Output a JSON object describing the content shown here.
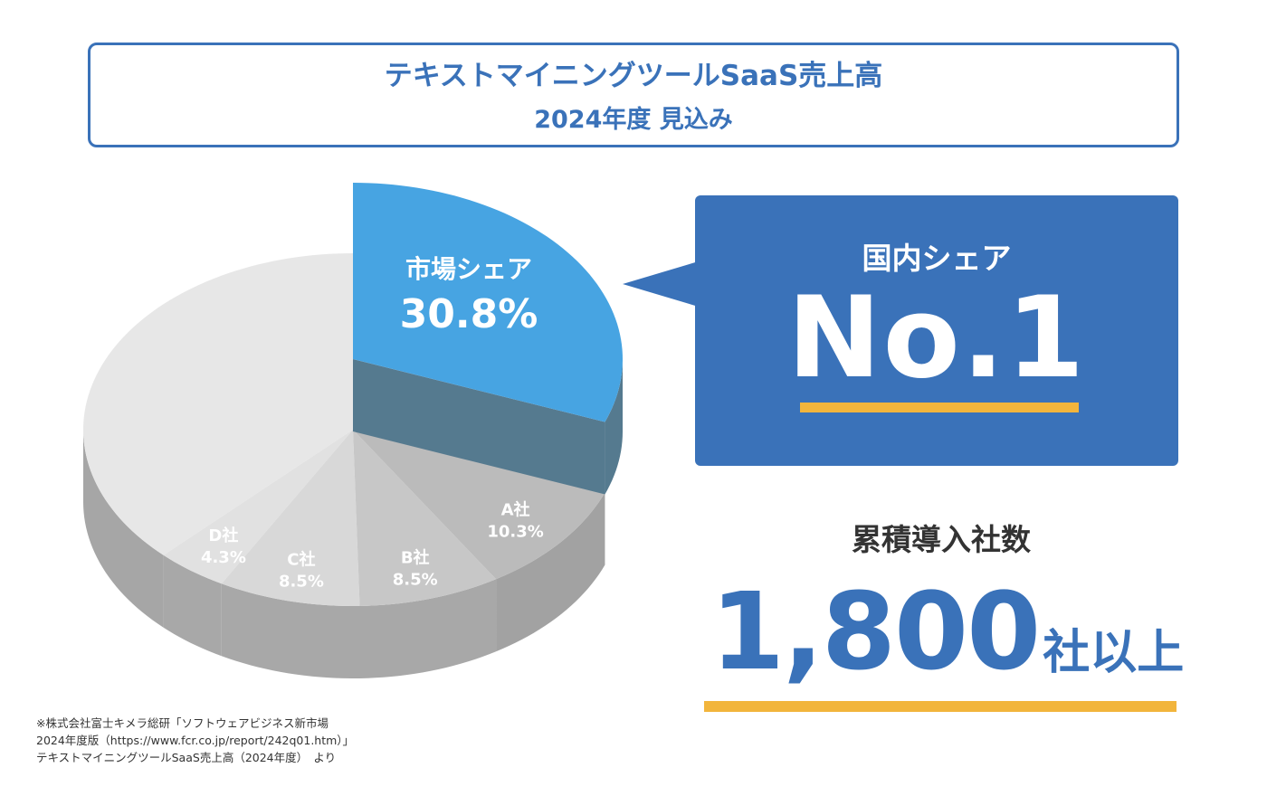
{
  "title": {
    "line1": "テキストマイニングツールSaaS売上高",
    "line2": "2024年度 見込み"
  },
  "colors": {
    "brand_blue": "#3a72b9",
    "highlight_top": "#47a4e2",
    "highlight_side": "#557a8f",
    "accent_underline": "#f2b53c",
    "others_top": "#e7e7e7",
    "others_side": "#a6a6a6"
  },
  "chart_data": {
    "type": "pie",
    "style": "3d-exploded",
    "title": "テキストマイニングツールSaaS売上高 2024年度 見込み",
    "slices": [
      {
        "name": "市場シェア",
        "label": "30.8%",
        "value": 30.8,
        "highlight": true
      },
      {
        "name": "A社",
        "label": "10.3%",
        "value": 10.3
      },
      {
        "name": "B社",
        "label": "8.5%",
        "value": 8.5
      },
      {
        "name": "C社",
        "label": "8.5%",
        "value": 8.5
      },
      {
        "name": "D社",
        "label": "4.3%",
        "value": 4.3
      },
      {
        "name": "",
        "label": "",
        "value": 37.6
      }
    ]
  },
  "callout": {
    "label": "国内シェア",
    "rank": "No.1"
  },
  "cumulative": {
    "label": "累積導入社数",
    "number": "1,800",
    "suffix": "社以上"
  },
  "source": {
    "line1": "※株式会社富士キメラ総研「ソフトウェアビジネス新市場",
    "line2": "2024年度版（https://www.fcr.co.jp/report/242q01.htm）」",
    "line3": "テキストマイニングツールSaaS売上高（2024年度）　より"
  }
}
